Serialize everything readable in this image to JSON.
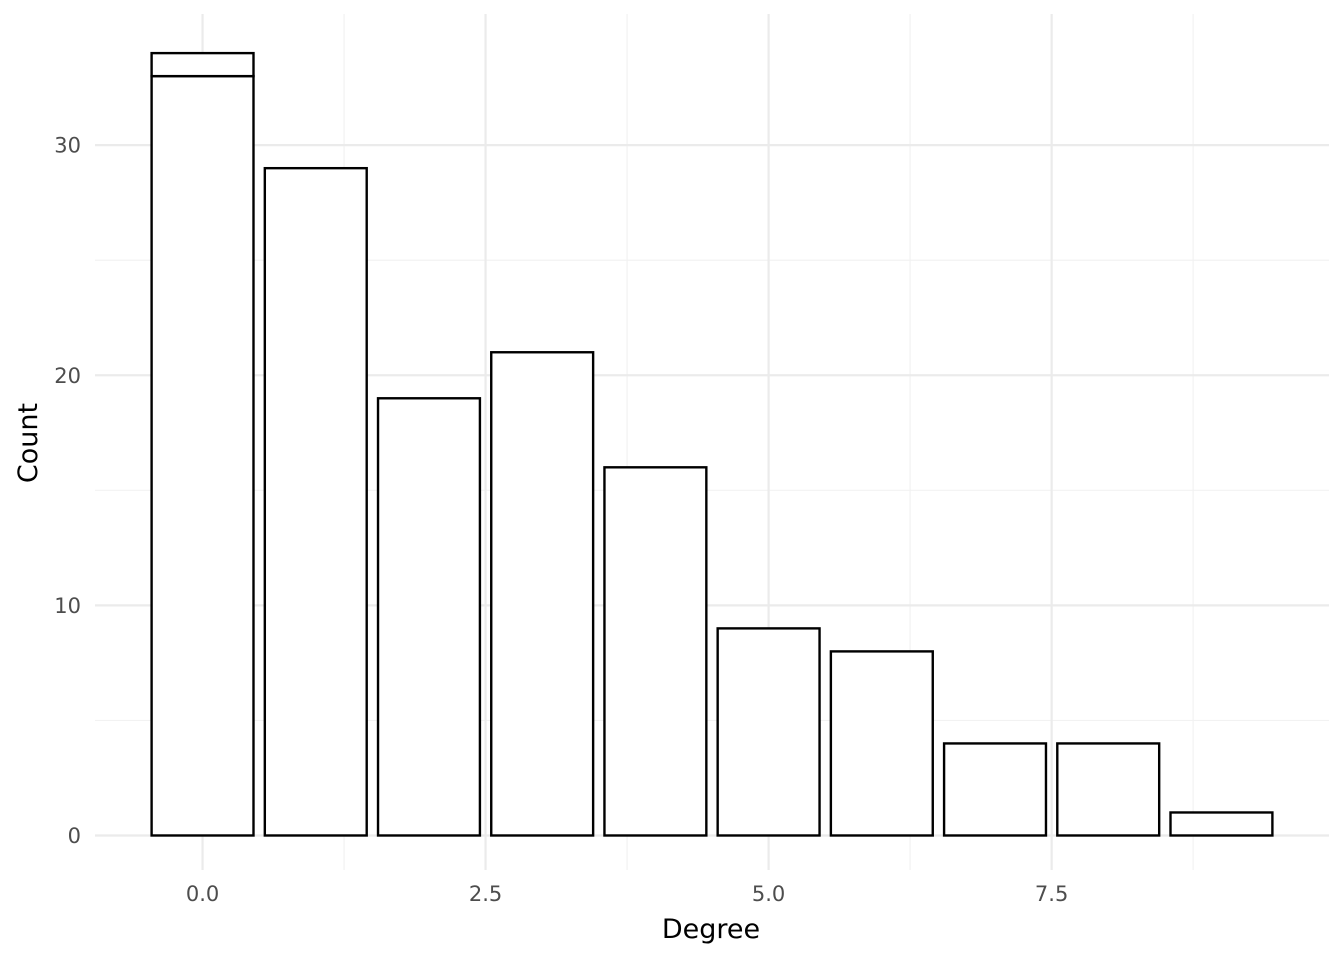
{
  "chart_data": {
    "type": "bar",
    "title": "",
    "xlabel": "Degree",
    "ylabel": "Count",
    "x": [
      0,
      1,
      2,
      3,
      4,
      5,
      6,
      7,
      8,
      9
    ],
    "values": [
      33,
      29,
      19,
      21,
      16,
      9,
      8,
      4,
      4,
      1
    ],
    "stacked_extra": [
      {
        "x": 0,
        "from": 33,
        "to": 34
      }
    ],
    "xlim": [
      -0.95,
      9.95
    ],
    "ylim": [
      -1.5,
      35.7
    ],
    "x_ticks": [
      {
        "value": 0,
        "label": "0.0"
      },
      {
        "value": 2.5,
        "label": "2.5"
      },
      {
        "value": 5,
        "label": "5.0"
      },
      {
        "value": 7.5,
        "label": "7.5"
      }
    ],
    "y_ticks": [
      {
        "value": 0,
        "label": "0"
      },
      {
        "value": 10,
        "label": "10"
      },
      {
        "value": 20,
        "label": "20"
      },
      {
        "value": 30,
        "label": "30"
      }
    ],
    "grid": true,
    "legend": "none",
    "colors": {
      "bar_fill": "#ffffff",
      "bar_stroke": "#000000",
      "grid": "#ebebeb"
    }
  }
}
